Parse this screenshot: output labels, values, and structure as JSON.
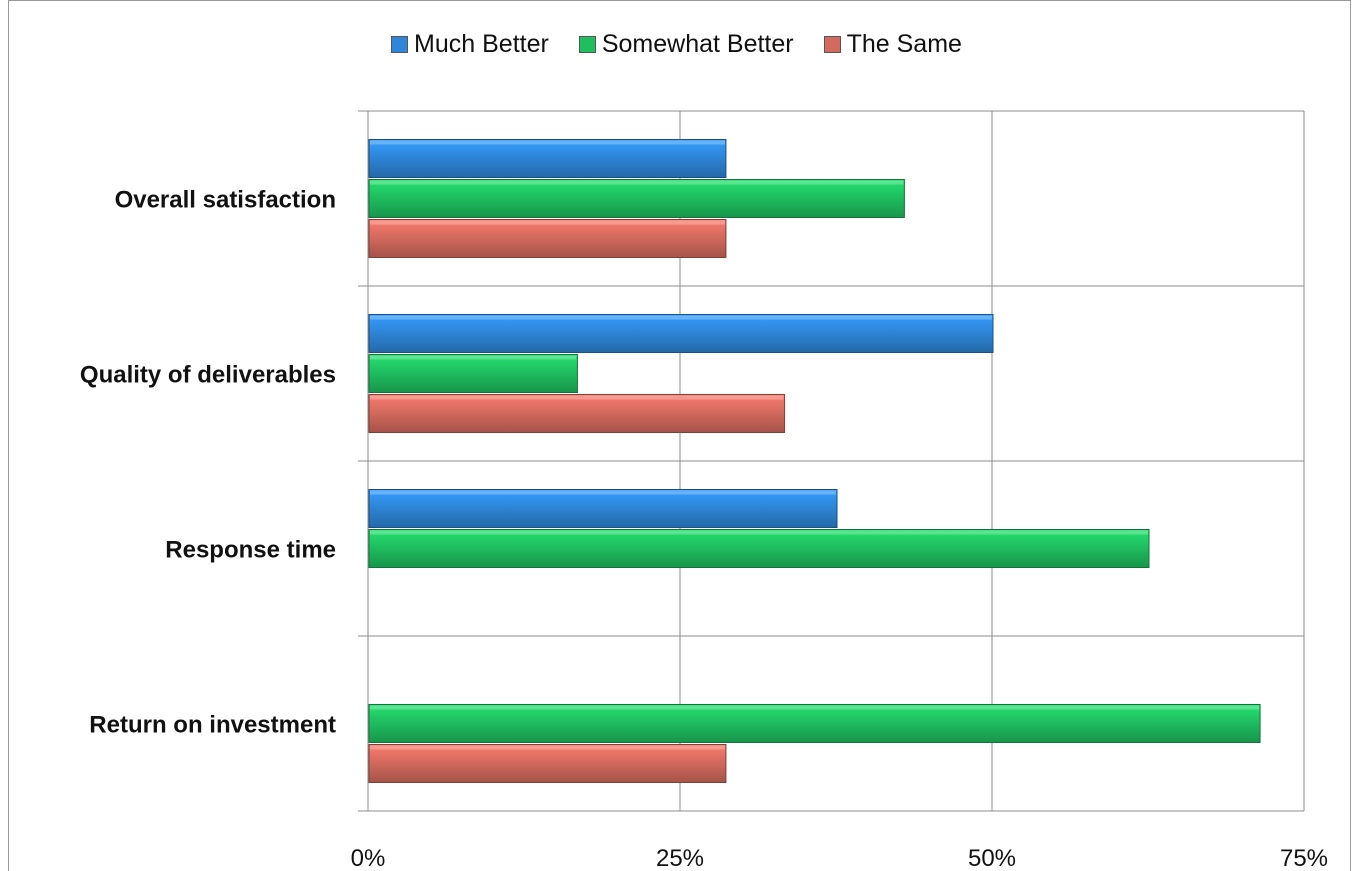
{
  "chart_data": {
    "type": "bar",
    "orientation": "horizontal",
    "categories": [
      "Overall satisfaction",
      "Quality of deliverables",
      "Response time",
      "Return on investment"
    ],
    "series": [
      {
        "name": "Much Better",
        "color": "#2e86d8",
        "values": [
          28.6,
          50.0,
          37.5,
          0
        ]
      },
      {
        "name": "Somewhat Better",
        "color": "#1fbf60",
        "values": [
          42.9,
          16.7,
          62.5,
          71.4
        ]
      },
      {
        "name": "The Same",
        "color": "#d46a5e",
        "values": [
          28.6,
          33.3,
          0,
          28.6
        ]
      }
    ],
    "xlim": [
      0,
      75
    ],
    "xticks": [
      0,
      25,
      50,
      75
    ],
    "xtick_labels": [
      "0%",
      "25%",
      "50%",
      "75%"
    ],
    "grid": true,
    "legend_position": "top"
  }
}
